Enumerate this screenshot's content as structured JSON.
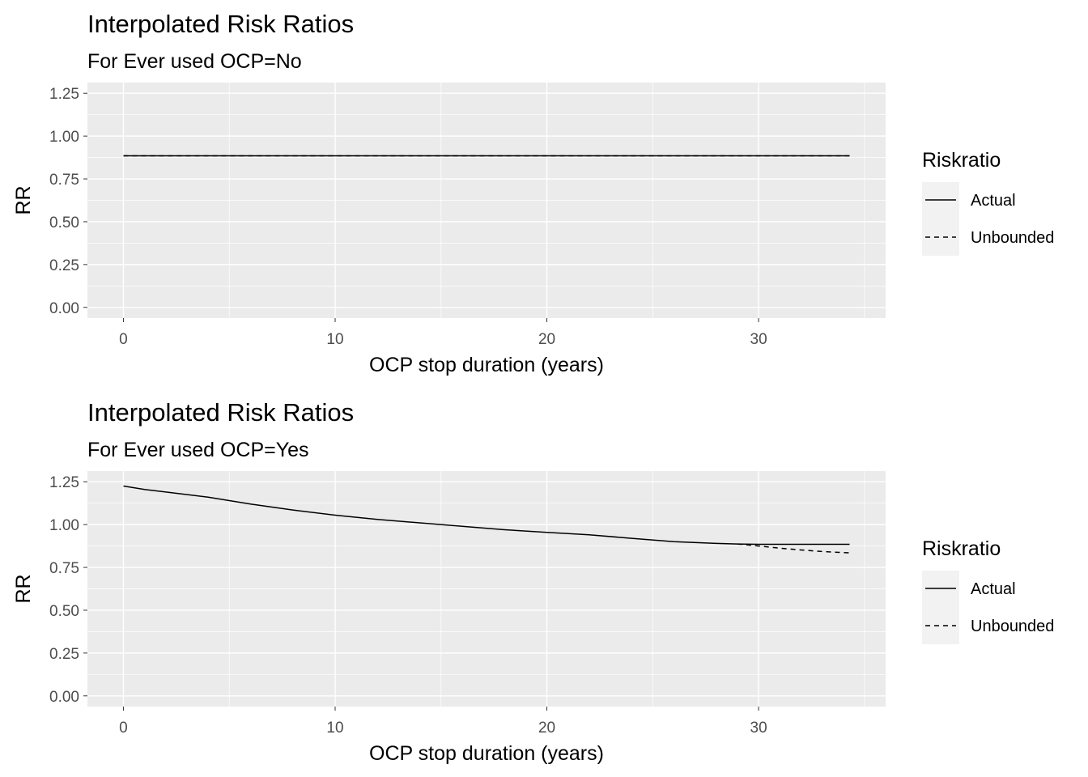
{
  "chart_data": [
    {
      "type": "line",
      "title": "Interpolated Risk Ratios",
      "subtitle": "For  Ever used OCP=No",
      "xlabel": "OCP stop duration (years)",
      "ylabel": "RR",
      "xlim": [
        -1.7,
        36
      ],
      "ylim": [
        -0.0625,
        1.3125
      ],
      "x_ticks": [
        0,
        10,
        20,
        30
      ],
      "x_tick_labels": [
        "0",
        "10",
        "20",
        "30"
      ],
      "y_ticks": [
        0,
        0.25,
        0.5,
        0.75,
        1.0,
        1.25
      ],
      "y_tick_labels": [
        "0.00",
        "0.25",
        "0.50",
        "0.75",
        "1.00",
        "1.25"
      ],
      "grid": true,
      "legend": {
        "title": "Riskratio",
        "position": "right",
        "entries": [
          {
            "label": "Actual",
            "linetype": "solid"
          },
          {
            "label": "Unbounded",
            "linetype": "dashed"
          }
        ]
      },
      "series": [
        {
          "name": "Actual",
          "linetype": "solid",
          "x": [
            0,
            34.3
          ],
          "y": [
            0.885,
            0.885
          ]
        },
        {
          "name": "Unbounded",
          "linetype": "dashed",
          "x": [
            0,
            34.3
          ],
          "y": [
            0.885,
            0.885
          ]
        }
      ]
    },
    {
      "type": "line",
      "title": "Interpolated Risk Ratios",
      "subtitle": "For  Ever used OCP=Yes",
      "xlabel": "OCP stop duration (years)",
      "ylabel": "RR",
      "xlim": [
        -1.7,
        36
      ],
      "ylim": [
        -0.0625,
        1.3125
      ],
      "x_ticks": [
        0,
        10,
        20,
        30
      ],
      "x_tick_labels": [
        "0",
        "10",
        "20",
        "30"
      ],
      "y_ticks": [
        0,
        0.25,
        0.5,
        0.75,
        1.0,
        1.25
      ],
      "y_tick_labels": [
        "0.00",
        "0.25",
        "0.50",
        "0.75",
        "1.00",
        "1.25"
      ],
      "grid": true,
      "legend": {
        "title": "Riskratio",
        "position": "right",
        "entries": [
          {
            "label": "Actual",
            "linetype": "solid"
          },
          {
            "label": "Unbounded",
            "linetype": "dashed"
          }
        ]
      },
      "series": [
        {
          "name": "Actual",
          "linetype": "solid",
          "x": [
            0,
            1,
            2,
            4,
            6,
            8,
            10,
            12,
            14,
            16,
            18,
            20,
            22,
            24,
            26,
            28,
            29,
            30,
            32,
            34.3
          ],
          "y": [
            1.225,
            1.205,
            1.19,
            1.16,
            1.12,
            1.085,
            1.055,
            1.03,
            1.01,
            0.99,
            0.97,
            0.955,
            0.94,
            0.92,
            0.9,
            0.89,
            0.887,
            0.885,
            0.885,
            0.885
          ]
        },
        {
          "name": "Unbounded",
          "linetype": "dashed",
          "x": [
            29,
            30,
            31,
            32,
            33,
            34.3
          ],
          "y": [
            0.887,
            0.875,
            0.862,
            0.852,
            0.843,
            0.835
          ]
        }
      ]
    }
  ]
}
